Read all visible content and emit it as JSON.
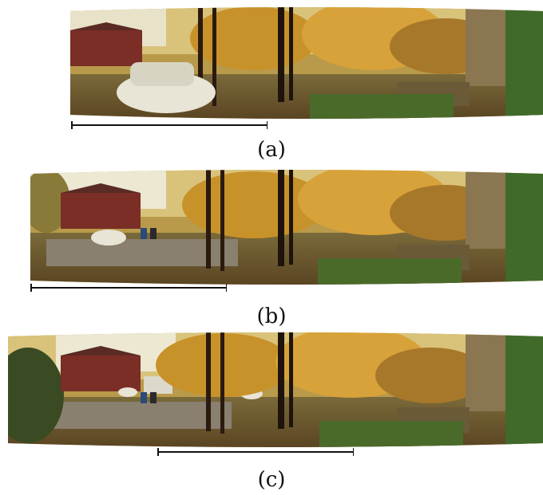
{
  "panels": [
    {
      "id": "a",
      "caption": "(a)"
    },
    {
      "id": "b",
      "caption": "(b)"
    },
    {
      "id": "c",
      "caption": "(c)"
    }
  ]
}
